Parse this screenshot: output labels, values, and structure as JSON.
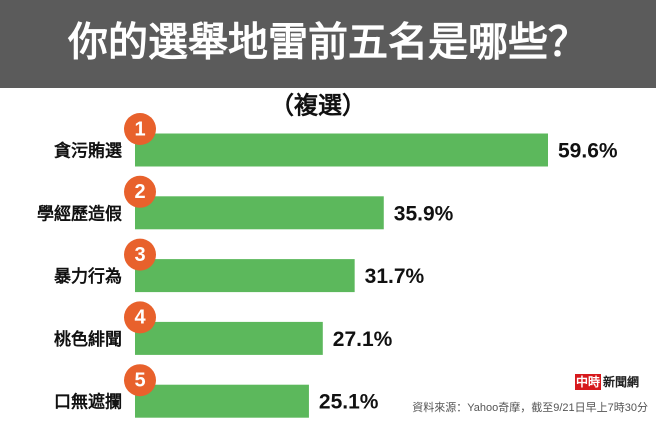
{
  "chart_data": {
    "type": "bar",
    "orientation": "horizontal",
    "title": "你的選舉地雷前五名是哪些？",
    "subtitle": "（複選）",
    "categories": [
      "貪污賄選",
      "學經歷造假",
      "暴力行為",
      "桃色緋聞",
      "口無遮攔"
    ],
    "ranks": [
      1,
      2,
      3,
      4,
      5
    ],
    "values": [
      59.6,
      35.9,
      31.7,
      27.1,
      25.1
    ],
    "value_labels": [
      "59.6%",
      "35.9%",
      "31.7%",
      "27.1%",
      "25.1%"
    ],
    "color": "#5cb85c",
    "badge_color": "#e8612c",
    "source": "資料來源：Yahoo奇摩，截至9/21日早上7時30分",
    "logo": {
      "highlight": "中時",
      "text": "新聞網"
    }
  }
}
